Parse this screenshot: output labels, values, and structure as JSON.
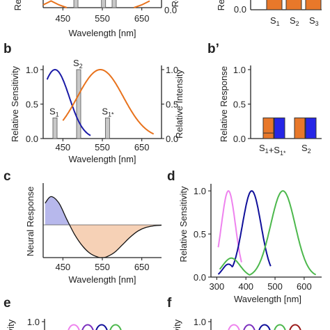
{
  "colors": {
    "blue_curve": "#1a1aa6",
    "orange_curve": "#e8721c",
    "orange_bar": "#e8782a",
    "blue_bar": "#2626e6",
    "gray_bar": "#c8c8c8",
    "neg_fill": "#f6d1b6",
    "pos_fill": "#b7b8ec",
    "pink": "#ee82ee",
    "navy": "#0f0f9a",
    "green": "#4cb84c",
    "purple": "#7b2fbe",
    "dark_red": "#9a1a1a"
  },
  "chart_data": [
    {
      "panel": "a",
      "type": "line",
      "x_ticks": [
        "450",
        "550",
        "650"
      ],
      "xlabel": "Wavelength [nm]",
      "ylabel_left": "Rela",
      "ylabel_right": "Re",
      "y_ticks_right": [
        "0.0"
      ],
      "xlim": [
        400,
        700
      ],
      "series": [
        {
          "color": "orange",
          "x": [
            400,
            420,
            440,
            460
          ],
          "y": [
            0.05,
            0.12,
            0.05,
            0.0
          ]
        },
        {
          "color": "orange",
          "x": [
            630,
            650,
            670
          ],
          "y": [
            0.0,
            0.05,
            0.12
          ]
        }
      ],
      "bars": [
        {
          "x": 483
        },
        {
          "x": 553
        },
        {
          "x": 580
        }
      ]
    },
    {
      "panel": "a'",
      "type": "bar",
      "ylabel": "Rela",
      "y_ticks": [
        "0.0"
      ],
      "categories": [
        "S1",
        "S2",
        "S3"
      ],
      "category_labels": [
        {
          "main": "S",
          "sub": "1"
        },
        {
          "main": "S",
          "sub": "2"
        },
        {
          "main": "S",
          "sub": "3"
        }
      ]
    },
    {
      "panel": "b",
      "type": "line",
      "xlabel": "Wavelength [nm]",
      "ylabel_left": "Relative Sensitivity",
      "ylabel_right": "Relative Intensity",
      "y_ticks_left": [
        "0.0",
        "0.5",
        "1.0"
      ],
      "y_ticks_right": [
        "0.0",
        "0.5",
        "1.0"
      ],
      "x_ticks": [
        "450",
        "550",
        "650"
      ],
      "xlim": [
        400,
        700
      ],
      "ylim": [
        0,
        1
      ],
      "series": [
        {
          "color": "blue",
          "peak_nm": 430,
          "sigma_nm": 36,
          "x_range": [
            410,
            520
          ]
        },
        {
          "color": "orange",
          "peak_nm": 545,
          "sigma_nm": 58,
          "x_range": [
            450,
            680
          ]
        }
      ],
      "stimuli": [
        {
          "label": "S1",
          "label_parts": {
            "main": "S",
            "sub": "1"
          },
          "x": 430,
          "intensity": 0.3
        },
        {
          "label": "S2",
          "label_parts": {
            "main": "S",
            "sub": "2"
          },
          "x": 490,
          "intensity": 1.0
        },
        {
          "label": "S1*",
          "label_parts": {
            "main": "S",
            "sub": "1*"
          },
          "x": 563,
          "intensity": 0.3
        }
      ]
    },
    {
      "panel": "b'",
      "type": "bar",
      "ylabel": "Relative Response",
      "y_ticks": [
        "0.0",
        "0.5",
        "1.0"
      ],
      "ylim": [
        0,
        1
      ],
      "groups": [
        {
          "label": "S1+S1*",
          "label_parts": [
            {
              "main": "S",
              "sub": "1"
            },
            {
              "main": "+S",
              "sub": "1*"
            }
          ],
          "orange": 0.3,
          "blue": 0.3,
          "orange_inner": 0.08
        },
        {
          "label": "S2",
          "label_parts": [
            {
              "main": "S",
              "sub": "2"
            }
          ],
          "orange": 0.3,
          "blue": 0.3
        }
      ]
    },
    {
      "panel": "c",
      "type": "area",
      "xlabel": "Wavelength [nm]",
      "ylabel": "Neural Response",
      "x_ticks": [
        "450",
        "550",
        "650"
      ],
      "xlim": [
        400,
        700
      ],
      "ylim": [
        -1,
        1
      ],
      "description_points": {
        "x": [
          405,
          420,
          440,
          460,
          480,
          500,
          520,
          540,
          550,
          560,
          580,
          600,
          620,
          640,
          660,
          680,
          700
        ],
        "y": [
          0.6,
          0.78,
          0.6,
          0.15,
          -0.3,
          -0.65,
          -0.88,
          -0.99,
          -1.0,
          -0.98,
          -0.85,
          -0.62,
          -0.38,
          -0.19,
          -0.08,
          -0.03,
          -0.01
        ]
      }
    },
    {
      "panel": "d",
      "type": "line",
      "xlabel": "Wavelength [nm]",
      "ylabel": "Relative Sensitivity",
      "y_ticks": [
        "0.0",
        "0.5",
        "1.0"
      ],
      "x_ticks": [
        "300",
        "400",
        "500",
        "600"
      ],
      "xlim": [
        280,
        660
      ],
      "ylim": [
        0,
        1.05
      ],
      "series": [
        {
          "color": "pink",
          "peak_nm": 340,
          "sigma_nm": 24,
          "x_range": [
            305,
            385
          ]
        },
        {
          "color": "navy",
          "peak_nm": 420,
          "sigma_nm": 32,
          "x_range": [
            305,
            485
          ]
        },
        {
          "color": "green",
          "peak_nm": 527,
          "sigma_nm": 42,
          "x_range": [
            310,
            640
          ]
        }
      ]
    },
    {
      "panel": "e",
      "type": "line",
      "ylabel": "ivity",
      "y_ticks": [
        "1.0"
      ],
      "peaks_nm": [
        360,
        400,
        460,
        520
      ],
      "colors": [
        "pink",
        "purple",
        "navy",
        "green"
      ]
    },
    {
      "panel": "f",
      "type": "line",
      "ylabel": "ivity",
      "y_ticks": [
        "1.0"
      ],
      "peaks_nm": [
        355,
        400,
        460,
        520,
        600
      ],
      "colors": [
        "pink",
        "purple",
        "navy",
        "green",
        "dark_red"
      ]
    }
  ]
}
